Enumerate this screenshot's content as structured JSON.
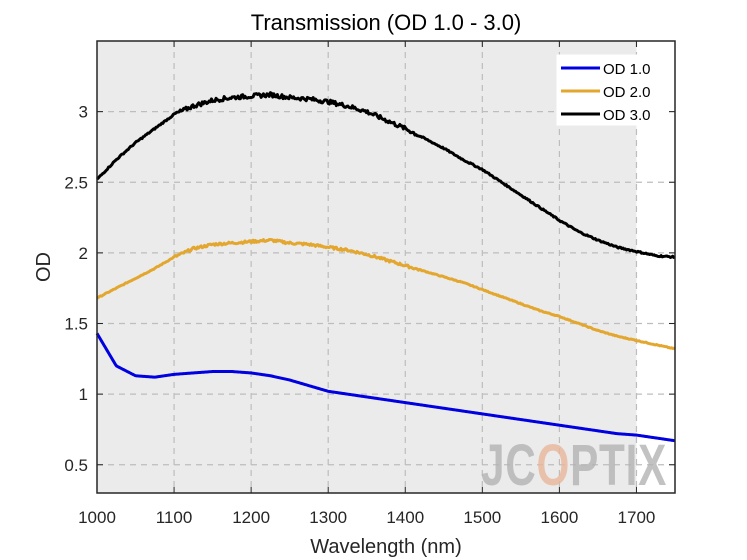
{
  "chart_data": {
    "type": "line",
    "title": "Transmission (OD 1.0 - 3.0)",
    "xlabel": "Wavelength (nm)",
    "ylabel": "OD",
    "xlim": [
      1000,
      1750
    ],
    "ylim": [
      0.3,
      3.5
    ],
    "xticks": [
      1000,
      1100,
      1200,
      1300,
      1400,
      1500,
      1600,
      1700
    ],
    "xtick_labels": [
      "1000",
      "1100",
      "1200",
      "1300",
      "1400",
      "1500",
      "1600",
      "1700"
    ],
    "yticks": [
      0.5,
      1,
      1.5,
      2,
      2.5,
      3
    ],
    "ytick_labels": [
      "0.5",
      "1",
      "1.5",
      "2",
      "2.5",
      "3"
    ],
    "grid": true,
    "shaded_region": [
      1000,
      1700
    ],
    "legend_position": "top-right",
    "x": [
      1000,
      1025,
      1050,
      1075,
      1100,
      1125,
      1150,
      1175,
      1200,
      1225,
      1250,
      1275,
      1300,
      1325,
      1350,
      1375,
      1400,
      1425,
      1450,
      1475,
      1500,
      1525,
      1550,
      1575,
      1600,
      1625,
      1650,
      1675,
      1700,
      1725,
      1750
    ],
    "series": [
      {
        "name": "OD 1.0",
        "color": "#0000e0",
        "values": [
          1.43,
          1.2,
          1.13,
          1.12,
          1.14,
          1.15,
          1.16,
          1.16,
          1.15,
          1.13,
          1.1,
          1.06,
          1.02,
          1.0,
          0.98,
          0.96,
          0.94,
          0.92,
          0.9,
          0.88,
          0.86,
          0.84,
          0.82,
          0.8,
          0.78,
          0.76,
          0.74,
          0.72,
          0.71,
          0.69,
          0.67
        ]
      },
      {
        "name": "OD 2.0",
        "color": "#e3a72f",
        "values": [
          1.68,
          1.75,
          1.82,
          1.89,
          1.97,
          2.03,
          2.06,
          2.07,
          2.08,
          2.09,
          2.07,
          2.06,
          2.04,
          2.02,
          1.99,
          1.95,
          1.91,
          1.87,
          1.83,
          1.79,
          1.74,
          1.69,
          1.64,
          1.59,
          1.55,
          1.5,
          1.45,
          1.41,
          1.38,
          1.35,
          1.32
        ]
      },
      {
        "name": "OD 3.0",
        "color": "#000000",
        "values": [
          2.52,
          2.66,
          2.78,
          2.88,
          2.98,
          3.04,
          3.08,
          3.1,
          3.11,
          3.12,
          3.1,
          3.09,
          3.07,
          3.04,
          3.0,
          2.94,
          2.88,
          2.81,
          2.74,
          2.66,
          2.59,
          2.5,
          2.41,
          2.32,
          2.23,
          2.15,
          2.09,
          2.04,
          2.01,
          1.98,
          1.97
        ]
      }
    ]
  },
  "watermark": {
    "text": "JCOPTIX",
    "color": "#b3b3b3",
    "accent_color": "#e8b79b"
  }
}
